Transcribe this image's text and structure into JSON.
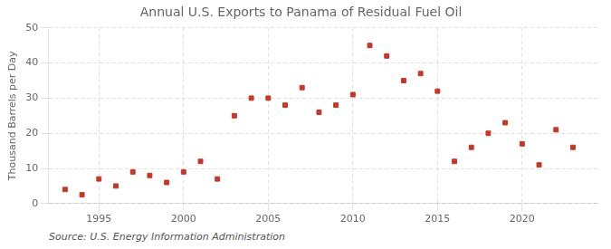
{
  "chart_data": {
    "type": "scatter",
    "title": "Annual U.S. Exports to Panama of Residual Fuel Oil",
    "y_label": "Thousand Barrels per Day",
    "annotations": [
      "Source: U.S. Energy Information Administration"
    ],
    "x": [
      1993,
      1994,
      1995,
      1996,
      1997,
      1998,
      1999,
      2000,
      2001,
      2002,
      2003,
      2004,
      2005,
      2006,
      2007,
      2008,
      2009,
      2010,
      2011,
      2012,
      2013,
      2014,
      2015,
      2016,
      2017,
      2018,
      2019,
      2020,
      2021,
      2022,
      2023
    ],
    "values": [
      4,
      2.5,
      7,
      5,
      9,
      8,
      6,
      9,
      12,
      7,
      25,
      30,
      30,
      28,
      33,
      26,
      28,
      31,
      45,
      42,
      35,
      37,
      32,
      12,
      16,
      20,
      23,
      17,
      11,
      21,
      16
    ],
    "color": "#c0392b",
    "marker": "square",
    "xlim": [
      1992.0,
      2024.5
    ],
    "xticks": [
      1995,
      2000,
      2005,
      2010,
      2015,
      2020
    ],
    "ylim": [
      0,
      50
    ],
    "yticks": [
      0,
      10,
      20,
      30,
      40,
      50
    ],
    "grid": true
  }
}
